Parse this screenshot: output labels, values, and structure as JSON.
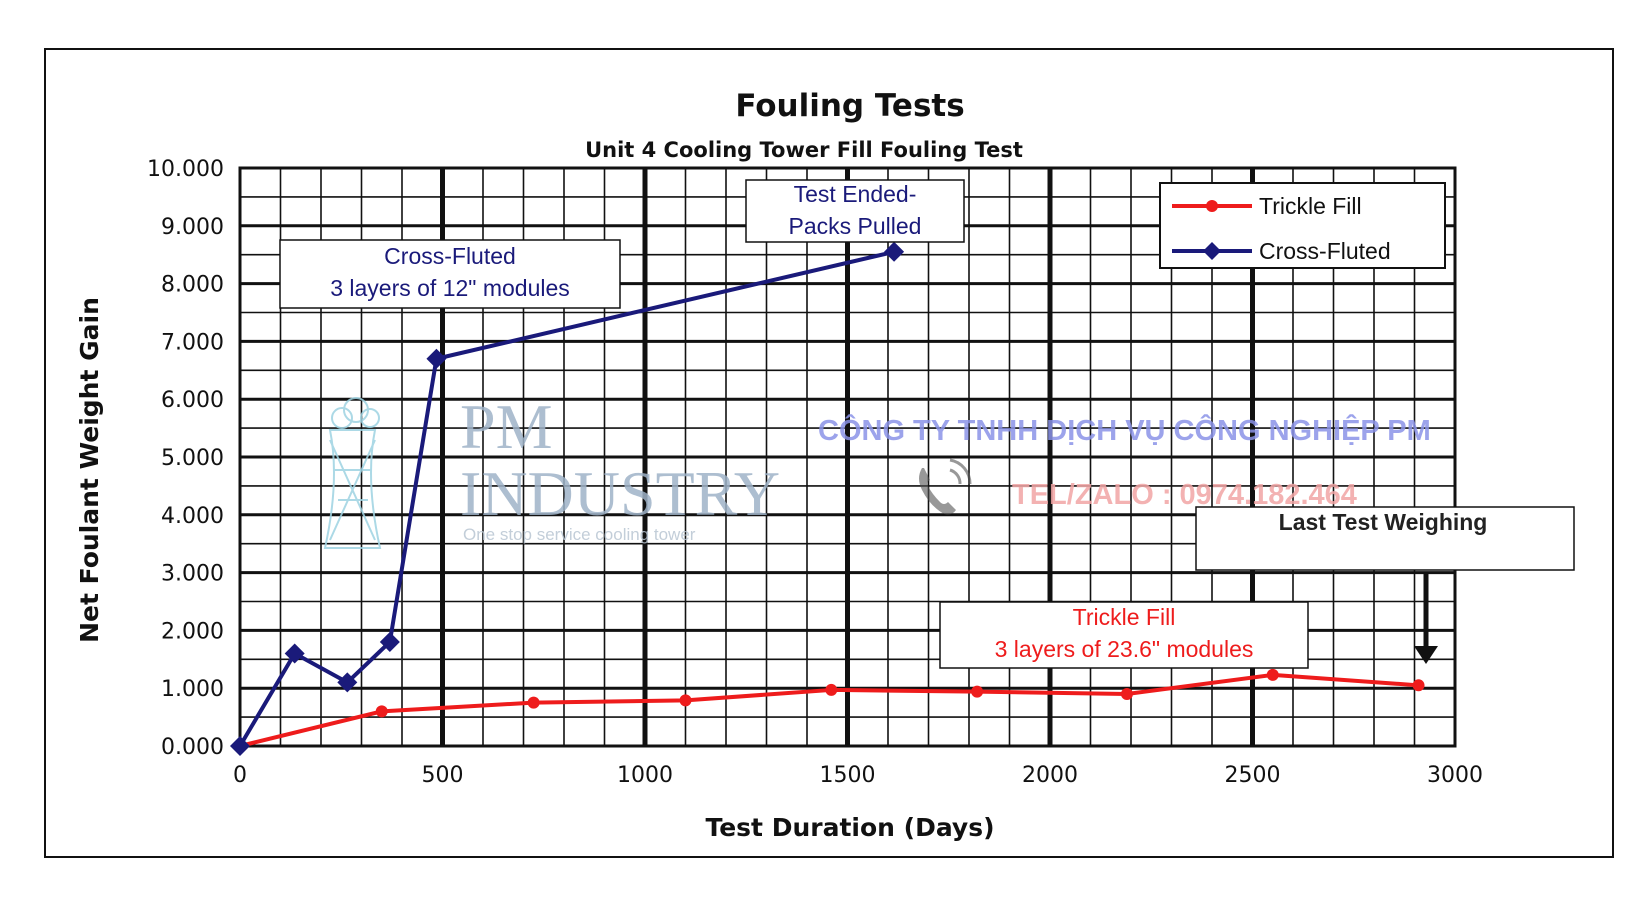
{
  "chart_data": {
    "type": "line",
    "title": "Fouling Tests",
    "subtitle": "Unit 4 Cooling Tower Fill Fouling Test",
    "xlabel": "Test Duration (Days)",
    "ylabel": "Net Foulant Weight Gain",
    "xlim": [
      0,
      3000
    ],
    "ylim": [
      0,
      10
    ],
    "x_ticks": [
      "0",
      "500",
      "1000",
      "1500",
      "2000",
      "2500",
      "3000"
    ],
    "y_ticks": [
      "0.000",
      "1.000",
      "2.000",
      "3.000",
      "4.000",
      "5.000",
      "6.000",
      "7.000",
      "8.000",
      "9.000",
      "10.000"
    ],
    "grid": true,
    "legend_position": "top-right",
    "series": [
      {
        "name": "Trickle Fill",
        "color": "#ee1c1c",
        "marker": "circle",
        "x": [
          0,
          350,
          725,
          1100,
          1460,
          1820,
          2190,
          2550,
          2910
        ],
        "y": [
          0.0,
          0.6,
          0.75,
          0.79,
          0.97,
          0.94,
          0.9,
          1.23,
          1.05
        ]
      },
      {
        "name": "Cross-Fluted",
        "color": "#1a1a7a",
        "marker": "diamond",
        "x": [
          0,
          135,
          265,
          370,
          485,
          1615
        ],
        "y": [
          0.0,
          1.6,
          1.1,
          1.8,
          6.7,
          8.55
        ]
      }
    ],
    "annotations": [
      {
        "id": "test-ended",
        "lines": [
          "Test Ended-",
          "Packs Pulled"
        ],
        "color": "#1a1a7a"
      },
      {
        "id": "cross-fluted-note",
        "lines": [
          "Cross-Fluted",
          "3 layers of 12\" modules"
        ],
        "color": "#1a1a7a"
      },
      {
        "id": "last-test",
        "lines": [
          "Last Test Weighing"
        ],
        "color": "#222222"
      },
      {
        "id": "trickle-note",
        "lines": [
          "Trickle Fill",
          "3 layers of 23.6\" modules"
        ],
        "color": "#ee1c1c"
      }
    ]
  },
  "watermark": {
    "brand_line1": "PM",
    "brand_line2": "INDUSTRY",
    "tagline": "One stop service cooling tower",
    "company": "CÔNG TY TNHH DỊCH VỤ CÔNG NGHIỆP PM",
    "phone": "TEL/ZALO : 0974.182.464",
    "logo_icon": "cooling-tower-icon",
    "phone_icon": "phone-icon"
  }
}
